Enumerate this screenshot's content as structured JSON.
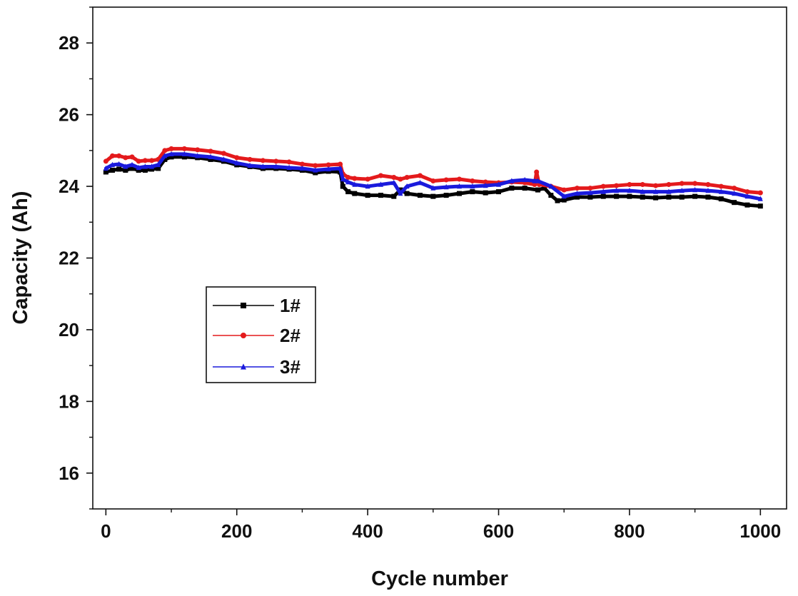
{
  "chart_data": {
    "type": "line",
    "title": "",
    "xlabel": "Cycle number",
    "ylabel": "Capacity (Ah)",
    "xlim": [
      -20,
      1040
    ],
    "ylim": [
      15,
      29
    ],
    "xticks": [
      0,
      200,
      400,
      600,
      800,
      1000
    ],
    "xtick_labels": [
      "0",
      "200",
      "400",
      "600",
      "800",
      "1000"
    ],
    "yticks": [
      16,
      18,
      20,
      22,
      24,
      26,
      28
    ],
    "ytick_labels": [
      "16",
      "18",
      "20",
      "22",
      "24",
      "26",
      "28"
    ],
    "grid": false,
    "legend_position": "center-left",
    "series": [
      {
        "name": "1#",
        "color": "#000000",
        "marker": "square",
        "x": [
          0,
          10,
          20,
          30,
          40,
          50,
          60,
          70,
          80,
          90,
          100,
          120,
          140,
          160,
          180,
          200,
          220,
          240,
          260,
          280,
          300,
          320,
          340,
          358,
          362,
          370,
          380,
          400,
          420,
          440,
          450,
          460,
          480,
          500,
          520,
          540,
          560,
          580,
          600,
          620,
          640,
          660,
          670,
          680,
          690,
          700,
          720,
          740,
          760,
          780,
          800,
          820,
          840,
          860,
          880,
          900,
          920,
          940,
          960,
          980,
          1000
        ],
        "values": [
          24.4,
          24.45,
          24.48,
          24.45,
          24.5,
          24.45,
          24.45,
          24.48,
          24.5,
          24.75,
          24.82,
          24.82,
          24.8,
          24.75,
          24.7,
          24.6,
          24.55,
          24.5,
          24.5,
          24.48,
          24.45,
          24.38,
          24.42,
          24.4,
          24.0,
          23.85,
          23.8,
          23.75,
          23.75,
          23.72,
          23.9,
          23.8,
          23.75,
          23.72,
          23.75,
          23.8,
          23.85,
          23.82,
          23.85,
          23.95,
          23.95,
          23.9,
          23.95,
          23.75,
          23.6,
          23.62,
          23.7,
          23.7,
          23.72,
          23.72,
          23.72,
          23.7,
          23.68,
          23.7,
          23.7,
          23.72,
          23.7,
          23.65,
          23.55,
          23.48,
          23.45
        ]
      },
      {
        "name": "2#",
        "color": "#e41a1c",
        "marker": "circle",
        "x": [
          0,
          10,
          20,
          30,
          40,
          50,
          60,
          70,
          80,
          90,
          100,
          120,
          140,
          160,
          180,
          200,
          220,
          240,
          260,
          280,
          300,
          320,
          340,
          358,
          362,
          370,
          380,
          400,
          420,
          440,
          450,
          460,
          480,
          500,
          520,
          540,
          560,
          580,
          600,
          620,
          640,
          655,
          658,
          662,
          680,
          700,
          720,
          740,
          760,
          780,
          800,
          820,
          840,
          860,
          880,
          900,
          920,
          940,
          960,
          980,
          1000
        ],
        "values": [
          24.7,
          24.85,
          24.85,
          24.8,
          24.82,
          24.7,
          24.72,
          24.72,
          24.75,
          25.0,
          25.05,
          25.05,
          25.02,
          24.98,
          24.92,
          24.8,
          24.75,
          24.72,
          24.7,
          24.68,
          24.62,
          24.58,
          24.6,
          24.62,
          24.35,
          24.25,
          24.22,
          24.2,
          24.3,
          24.25,
          24.2,
          24.25,
          24.3,
          24.15,
          24.18,
          24.2,
          24.15,
          24.12,
          24.1,
          24.12,
          24.1,
          24.05,
          24.4,
          24.05,
          24.0,
          23.9,
          23.95,
          23.95,
          24.0,
          24.02,
          24.05,
          24.05,
          24.02,
          24.05,
          24.08,
          24.08,
          24.05,
          24.0,
          23.95,
          23.85,
          23.82
        ]
      },
      {
        "name": "3#",
        "color": "#1a1adc",
        "marker": "triangle",
        "x": [
          0,
          10,
          20,
          30,
          40,
          50,
          60,
          70,
          80,
          90,
          100,
          120,
          140,
          160,
          180,
          200,
          220,
          240,
          260,
          280,
          300,
          320,
          340,
          358,
          362,
          370,
          380,
          400,
          420,
          440,
          450,
          460,
          480,
          500,
          520,
          540,
          560,
          580,
          600,
          620,
          640,
          655,
          660,
          680,
          700,
          720,
          740,
          760,
          780,
          800,
          820,
          840,
          860,
          880,
          900,
          920,
          940,
          960,
          980,
          1000
        ],
        "values": [
          24.5,
          24.6,
          24.62,
          24.55,
          24.6,
          24.52,
          24.55,
          24.55,
          24.6,
          24.85,
          24.9,
          24.9,
          24.85,
          24.82,
          24.75,
          24.65,
          24.58,
          24.55,
          24.55,
          24.52,
          24.5,
          24.45,
          24.48,
          24.5,
          24.2,
          24.12,
          24.05,
          24.0,
          24.05,
          24.1,
          23.8,
          24.0,
          24.1,
          23.95,
          23.98,
          24.0,
          24.0,
          24.02,
          24.05,
          24.15,
          24.18,
          24.15,
          24.15,
          24.0,
          23.72,
          23.8,
          23.82,
          23.85,
          23.88,
          23.88,
          23.85,
          23.85,
          23.85,
          23.88,
          23.9,
          23.88,
          23.85,
          23.8,
          23.72,
          23.65
        ]
      }
    ]
  }
}
